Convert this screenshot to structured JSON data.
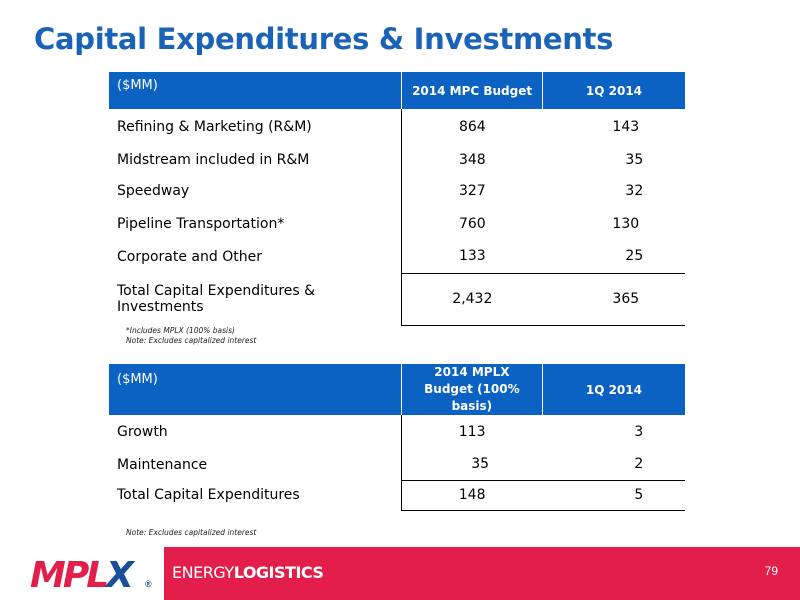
{
  "title": "Capital Expenditures & Investments",
  "table1": {
    "unit": "($MM)",
    "col1": "2014 MPC Budget",
    "col2": "1Q 2014",
    "rows": [
      {
        "label": "Refining & Marketing (R&M)",
        "v1": "864",
        "v2": "143"
      },
      {
        "label": "Midstream included in R&M",
        "v1": "348",
        "v2": "35"
      },
      {
        "label": "Speedway",
        "v1": "327",
        "v2": "32"
      },
      {
        "label": "Pipeline Transportation*",
        "v1": "760",
        "v2": "130"
      },
      {
        "label": "Corporate and Other",
        "v1": "133",
        "v2": "25"
      }
    ],
    "total": {
      "label": "Total Capital Expenditures & Investments",
      "v1": "2,432",
      "v2": "365"
    }
  },
  "notes1": [
    "*Includes MPLX (100% basis)",
    "Note:  Excludes capitalized interest"
  ],
  "table2": {
    "unit": "($MM)",
    "col1": "2014 MPLX Budget (100% basis)",
    "col2": "1Q 2014",
    "rows": [
      {
        "label": "Growth",
        "v1": "113",
        "v2": "3"
      },
      {
        "label": "Maintenance",
        "v1": "35",
        "v2": "2"
      }
    ],
    "total": {
      "label": "Total Capital Expenditures",
      "v1": "148",
      "v2": "5"
    }
  },
  "note2": "Note:  Excludes capitalized interest",
  "footer": {
    "logo_prefix": "MPL",
    "logo_x": "X",
    "reg": "®",
    "tagline_light": "ENERGY",
    "tagline_bold": "LOGISTICS",
    "page_number": "79"
  }
}
